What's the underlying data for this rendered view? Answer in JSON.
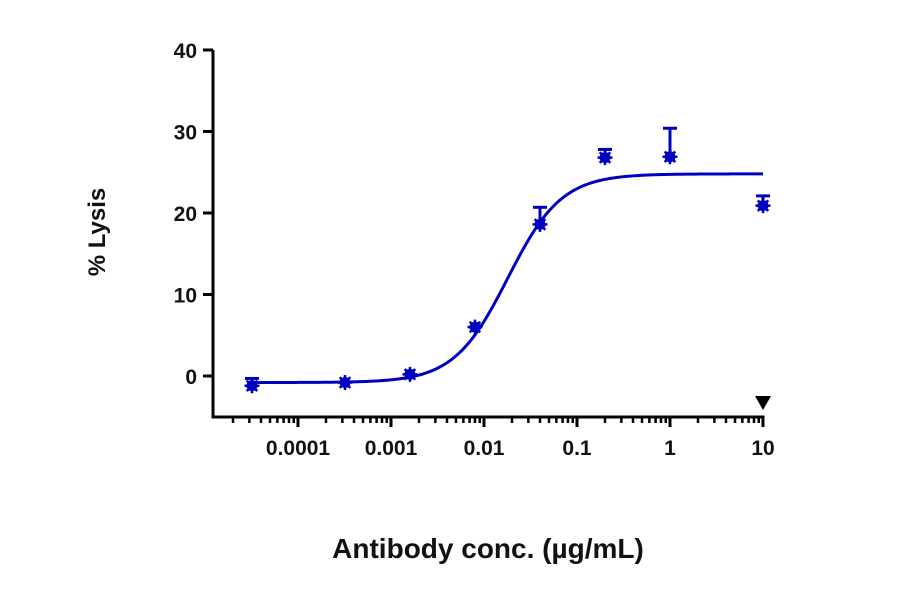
{
  "chart_data": {
    "type": "scatter",
    "title": "",
    "xlabel": "Antibody conc. (µg/mL)",
    "ylabel": "% Lysis",
    "xscale": "log",
    "xlim": [
      2e-05,
      10
    ],
    "ylim": [
      -5,
      40
    ],
    "x_ticks": [
      0.0001,
      0.001,
      0.01,
      0.1,
      1,
      10
    ],
    "x_tick_labels": [
      "0.0001",
      "0.001",
      "0.01",
      "0.1",
      "1",
      "10"
    ],
    "y_ticks": [
      0,
      10,
      20,
      30,
      40
    ],
    "y_tick_labels": [
      "0",
      "10",
      "20",
      "30",
      "40"
    ],
    "grid": false,
    "legend": null,
    "color": "#0000c0",
    "series": [
      {
        "name": "% Lysis",
        "x": [
          3.2e-05,
          0.00032,
          0.0016,
          0.008,
          0.04,
          0.2,
          1,
          10
        ],
        "y": [
          -1.2,
          -0.8,
          0.2,
          6.0,
          18.6,
          26.8,
          26.9,
          20.9
        ],
        "error_upper": [
          0.9,
          0.0,
          0.0,
          0.0,
          2.1,
          1.0,
          3.5,
          1.2
        ],
        "marker": "asterisk-filled"
      }
    ],
    "fit_curve": {
      "type": "4PL sigmoid",
      "bottom": -0.8,
      "top": 24.8,
      "ec50": 0.018,
      "hill": 1.5
    },
    "annotations": [
      {
        "type": "marker",
        "shape": "down-triangle",
        "x": 10,
        "position": "just above x-axis",
        "color": "#000000"
      }
    ]
  }
}
